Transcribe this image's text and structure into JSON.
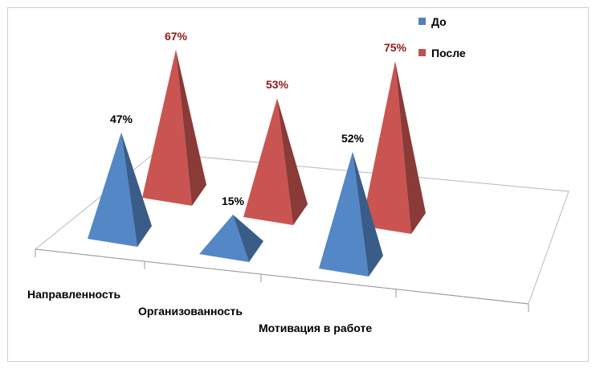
{
  "chart_data": {
    "type": "bar",
    "style": "3d-pyramid",
    "categories": [
      "Направленность",
      "Организованность",
      "Мотивация в работе"
    ],
    "series": [
      {
        "name": "До",
        "values": [
          47,
          15,
          52
        ],
        "labels": [
          "47%",
          "15%",
          "52%"
        ],
        "color": "#4f81bd",
        "label_color": "#000000"
      },
      {
        "name": "После",
        "values": [
          67,
          53,
          75
        ],
        "labels": [
          "67%",
          "53%",
          "75%"
        ],
        "color": "#c0504d",
        "label_color": "#8b1a1a"
      }
    ],
    "unit": "%",
    "legend": "top-right",
    "grid": false
  }
}
